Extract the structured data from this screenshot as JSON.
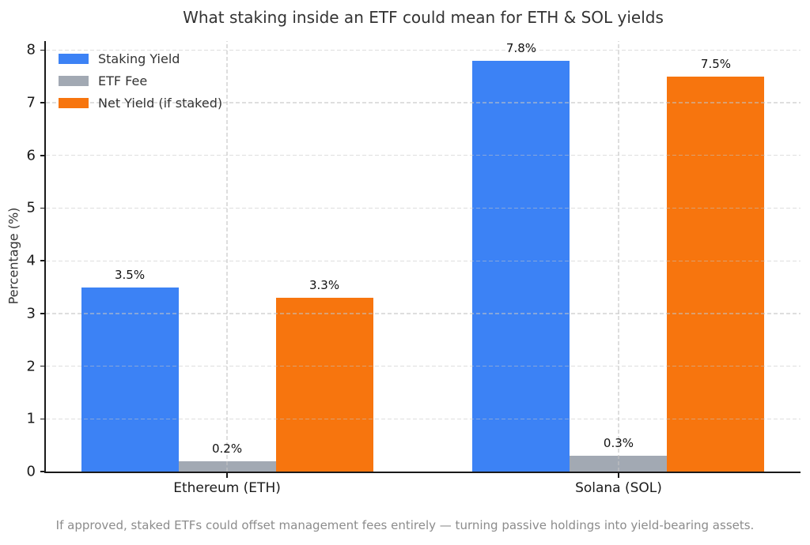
{
  "chart_data": {
    "type": "bar",
    "title": "What staking inside an ETF could mean for ETH & SOL yields",
    "ylabel": "Percentage (%)",
    "xlabel": "",
    "categories": [
      "Ethereum (ETH)",
      "Solana (SOL)"
    ],
    "series": [
      {
        "name": "Staking Yield",
        "color": "#3c82f5",
        "values": [
          3.5,
          7.8
        ],
        "value_labels": [
          "3.5%",
          "7.8%"
        ]
      },
      {
        "name": "ETF Fee",
        "color": "#a2a9b3",
        "values": [
          0.2,
          0.3
        ],
        "value_labels": [
          "0.2%",
          "0.3%"
        ]
      },
      {
        "name": "Net Yield (if staked)",
        "color": "#f7750e",
        "values": [
          3.3,
          7.5
        ],
        "value_labels": [
          "3.3%",
          "7.5%"
        ]
      }
    ],
    "ytick_labels": [
      "0",
      "1",
      "2",
      "3",
      "4",
      "5",
      "6",
      "7",
      "8"
    ],
    "ylim": [
      0,
      8.17
    ],
    "grid": "dashed-both-axes",
    "legend_position": "upper-left",
    "axis_color": "#1a1a1a"
  },
  "footer": {
    "text": "If approved, staked ETFs could offset management fees entirely — turning passive holdings into yield-bearing assets."
  }
}
